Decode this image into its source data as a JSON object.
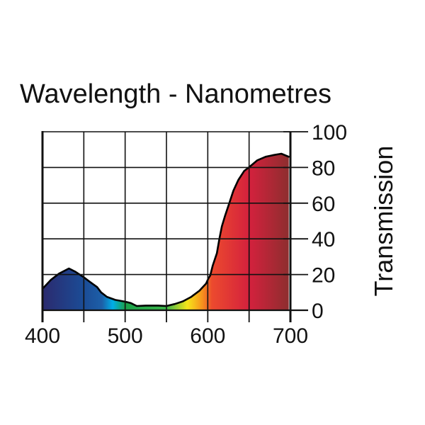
{
  "chart_data": {
    "type": "area",
    "title": "Wavelength - Nanometres",
    "xlabel": "",
    "ylabel": "Transmission",
    "xlim": [
      400,
      700
    ],
    "ylim": [
      0,
      100
    ],
    "grid": true,
    "x_ticks": [
      400,
      450,
      500,
      550,
      600,
      650,
      700
    ],
    "x_tick_labels": [
      "400",
      "500",
      "600",
      "700"
    ],
    "x_labeled_ticks": [
      400,
      500,
      600,
      700
    ],
    "y_ticks": [
      0,
      20,
      40,
      60,
      80,
      100
    ],
    "y_tick_labels": [
      "0",
      "20",
      "40",
      "60",
      "80",
      "100"
    ],
    "y_axis_side": "right",
    "fill": "visible-spectrum gradient",
    "spectrum_colors": [
      {
        "nm": 400,
        "color": "#2b2a6e"
      },
      {
        "nm": 450,
        "color": "#1b4c96"
      },
      {
        "nm": 472,
        "color": "#1d5fa8"
      },
      {
        "nm": 485,
        "color": "#00aee8"
      },
      {
        "nm": 500,
        "color": "#1aa14a"
      },
      {
        "nm": 550,
        "color": "#3cb54a"
      },
      {
        "nm": 575,
        "color": "#f5e61a"
      },
      {
        "nm": 593,
        "color": "#f7941d"
      },
      {
        "nm": 605,
        "color": "#ec4a2e"
      },
      {
        "nm": 650,
        "color": "#d4213d"
      },
      {
        "nm": 700,
        "color": "#8b2e2e"
      }
    ],
    "series": [
      {
        "name": "Transmission",
        "points": [
          [
            400,
            12
          ],
          [
            410,
            17
          ],
          [
            420,
            20.5
          ],
          [
            432,
            23.4
          ],
          [
            440,
            21.5
          ],
          [
            450,
            18.5
          ],
          [
            460,
            15
          ],
          [
            466,
            13
          ],
          [
            471,
            10
          ],
          [
            478,
            7.5
          ],
          [
            488,
            5.8
          ],
          [
            500,
            4.8
          ],
          [
            507,
            4
          ],
          [
            514,
            2.4
          ],
          [
            525,
            2.6
          ],
          [
            540,
            2.6
          ],
          [
            550,
            2.4
          ],
          [
            560,
            3.5
          ],
          [
            570,
            5
          ],
          [
            580,
            7.5
          ],
          [
            590,
            11
          ],
          [
            598,
            15
          ],
          [
            601,
            18
          ],
          [
            603,
            19.5
          ],
          [
            606,
            25
          ],
          [
            611,
            32
          ],
          [
            614,
            40
          ],
          [
            617,
            47
          ],
          [
            621,
            53
          ],
          [
            626,
            60
          ],
          [
            631,
            67
          ],
          [
            637,
            73
          ],
          [
            644,
            78
          ],
          [
            651,
            80.5
          ],
          [
            660,
            84
          ],
          [
            670,
            86
          ],
          [
            680,
            87
          ],
          [
            689,
            87.7
          ],
          [
            698,
            86
          ]
        ]
      }
    ]
  }
}
